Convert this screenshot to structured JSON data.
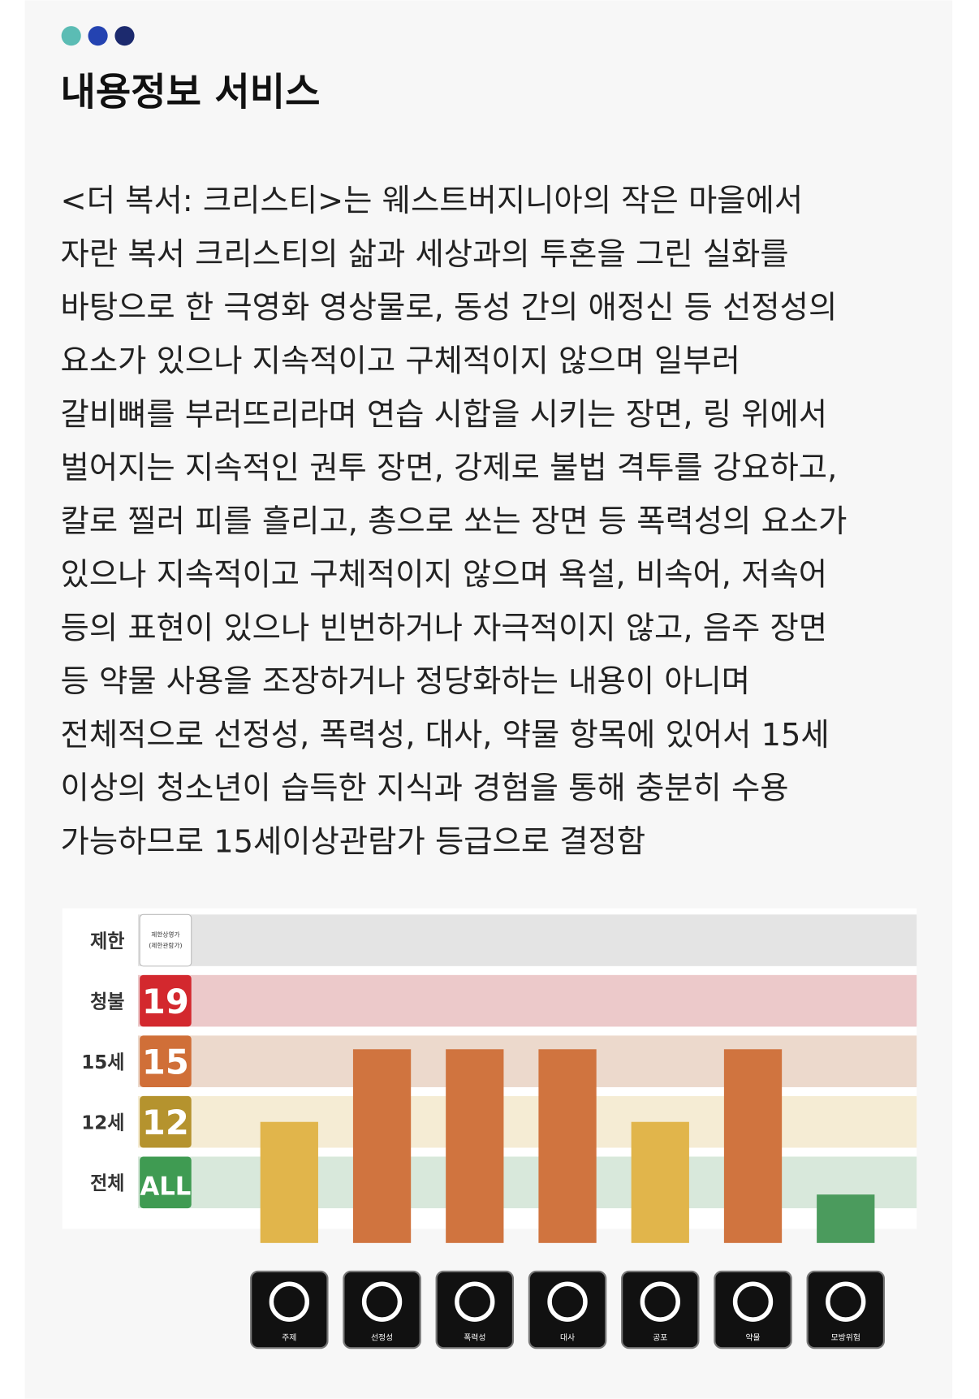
{
  "header": {
    "title": "내용정보 서비스"
  },
  "body": {
    "lines": [
      "<더 복서: 크리스티>는 웨스트버지니아의 작은 마을에서",
      "자란 복서 크리스티의 삶과 세상과의 투혼을 그린 실화를",
      "바탕으로 한 극영화 영상물로, 동성 간의 애정신 등 선정성의",
      "요소가 있으나 지속적이고 구체적이지 않으며 일부러",
      "갈비뼈를 부러뜨리라며 연습 시합을 시키는 장면, 링 위에서",
      "벌어지는 지속적인 권투 장면, 강제로 불법 격투를 강요하고,",
      "칼로 찔러 피를 흘리고, 총으로 쏘는 장면 등 폭력성의 요소가",
      "있으나 지속적이고 구체적이지 않으며 욕설, 비속어, 저속어",
      "등의 표현이 있으나 빈번하거나 자극적이지 않고, 음주 장면",
      "등 약물 사용을 조장하거나 정당화하는 내용이 아니며",
      "전체적으로 선정성, 폭력성, 대사, 약물 항목에 있어서 15세",
      "이상의 청소년이 습득한 지식과 경험을 통해 충분히 수용",
      "가능하므로 15세이상관람가 등급으로 결정함"
    ]
  },
  "chart_data": {
    "type": "bar",
    "categories": [
      "주제",
      "선정성",
      "폭력성",
      "대사",
      "공포",
      "약물",
      "모방위험"
    ],
    "values": [
      2,
      3.2,
      3.2,
      3.2,
      2,
      3.2,
      0.8
    ],
    "colors": [
      "#e1b54b",
      "#d0743f",
      "#d0743f",
      "#d0743f",
      "#e1b54b",
      "#d0743f",
      "#4b9b5d"
    ],
    "ylim": [
      0,
      5.5
    ],
    "yticks": [
      {
        "value": 1,
        "label": "전체"
      },
      {
        "value": 2,
        "label": "12세"
      },
      {
        "value": 3,
        "label": "15세"
      },
      {
        "value": 4,
        "label": "청불"
      },
      {
        "value": 5,
        "label": "제한"
      }
    ],
    "badges": [
      {
        "text": "ALL",
        "color": "#3f9b52",
        "band": "#d8e8db"
      },
      {
        "text": "12",
        "color": "#b5932e",
        "band": "#f5ecd4"
      },
      {
        "text": "15",
        "color": "#d06f38",
        "band": "#ecd9cc"
      },
      {
        "text": "19",
        "color": "#d3282e",
        "band": "#ecc9ca"
      },
      {
        "text": "제한상영가",
        "subtext": "(제한관람가)",
        "color": "#ffffff",
        "band": "#e4e4e4"
      }
    ]
  }
}
